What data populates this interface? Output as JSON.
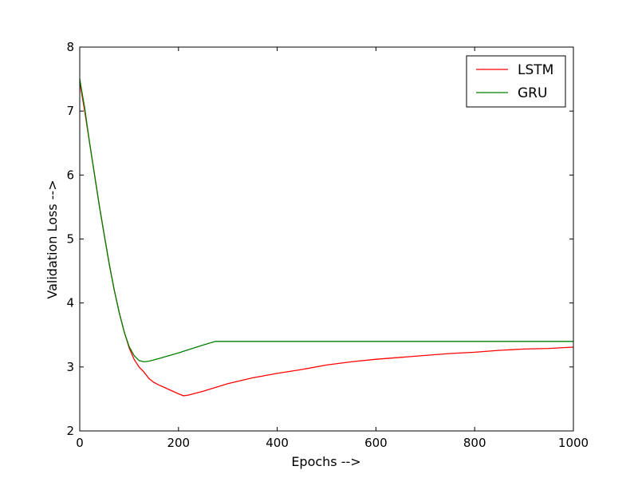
{
  "chart_data": {
    "type": "line",
    "title": "",
    "xlabel": "Epochs -->",
    "ylabel": "Validation Loss -->",
    "xlim": [
      0,
      1000
    ],
    "ylim": [
      2,
      8
    ],
    "x_ticks": [
      0,
      200,
      400,
      600,
      800,
      1000
    ],
    "y_ticks": [
      2,
      3,
      4,
      5,
      6,
      7,
      8
    ],
    "grid": false,
    "legend_position": "top-right",
    "series": [
      {
        "name": "LSTM",
        "color": "#ff0000",
        "x": [
          0,
          10,
          20,
          30,
          40,
          50,
          60,
          70,
          80,
          90,
          100,
          110,
          120,
          130,
          140,
          150,
          160,
          180,
          200,
          210,
          220,
          250,
          300,
          350,
          400,
          450,
          500,
          550,
          600,
          650,
          700,
          750,
          800,
          850,
          900,
          950,
          1000
        ],
        "values": [
          7.45,
          7.0,
          6.5,
          6.0,
          5.5,
          5.05,
          4.6,
          4.2,
          3.85,
          3.55,
          3.3,
          3.12,
          3.0,
          2.92,
          2.82,
          2.76,
          2.72,
          2.65,
          2.58,
          2.55,
          2.56,
          2.62,
          2.74,
          2.83,
          2.9,
          2.96,
          3.03,
          3.08,
          3.12,
          3.15,
          3.18,
          3.21,
          3.23,
          3.26,
          3.28,
          3.29,
          3.31
        ]
      },
      {
        "name": "GRU",
        "color": "#008000",
        "x": [
          0,
          10,
          20,
          30,
          40,
          50,
          60,
          70,
          80,
          90,
          100,
          110,
          120,
          130,
          140,
          160,
          200,
          240,
          275,
          300,
          400,
          500,
          600,
          700,
          800,
          900,
          1000
        ],
        "values": [
          7.5,
          7.05,
          6.5,
          6.0,
          5.5,
          5.05,
          4.6,
          4.2,
          3.85,
          3.55,
          3.32,
          3.18,
          3.1,
          3.08,
          3.09,
          3.13,
          3.22,
          3.32,
          3.4,
          3.4,
          3.4,
          3.4,
          3.4,
          3.4,
          3.4,
          3.4,
          3.4
        ]
      }
    ]
  }
}
